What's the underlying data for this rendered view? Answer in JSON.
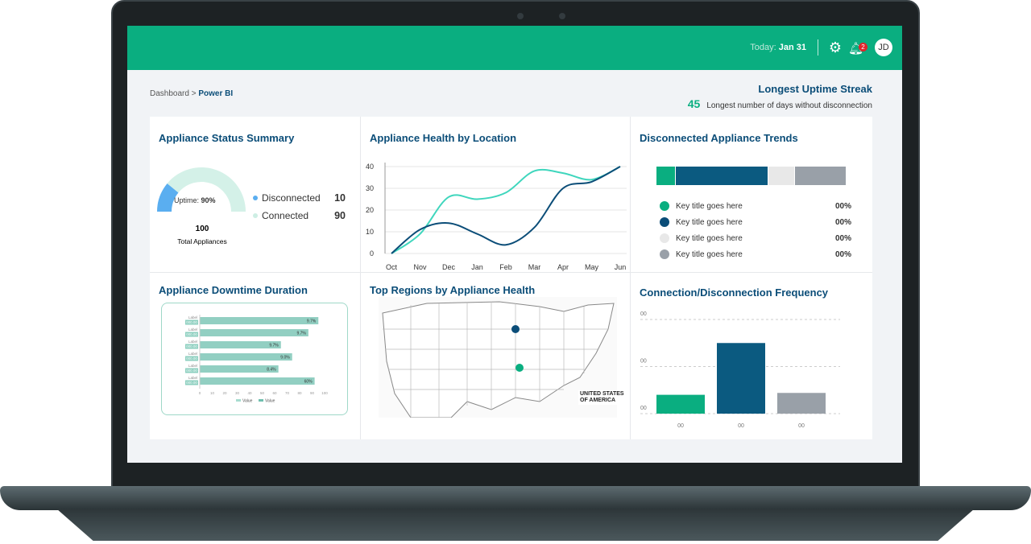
{
  "header": {
    "today_label": "Today:",
    "today_value": "Jan 31",
    "notifications": "2",
    "avatar": "JD"
  },
  "breadcrumb": {
    "root": "Dashboard",
    "sep": ">",
    "current": "Power BI"
  },
  "streak": {
    "title": "Longest Uptime Streak",
    "value": "45",
    "desc": "Longest number of days without disconnection"
  },
  "status": {
    "title": "Appliance Status Summary",
    "uptime_label": "Uptime:",
    "uptime_value": "90%",
    "uptime_fraction": 0.9,
    "items": [
      {
        "label": "Disconnected",
        "value": "10",
        "color": "#5aaef0"
      },
      {
        "label": "Connected",
        "value": "90",
        "color": "#cdeee4"
      }
    ],
    "total": "100",
    "total_label": "Total Appliances"
  },
  "health": {
    "title": "Appliance Health by Location",
    "chart_data": {
      "type": "line",
      "x": [
        "Oct",
        "Nov",
        "Dec",
        "Jan",
        "Feb",
        "Mar",
        "Apr",
        "May",
        "Jun"
      ],
      "yticks": [
        "0",
        "10",
        "20",
        "30",
        "40"
      ],
      "ylim": [
        0,
        40
      ],
      "series": [
        {
          "name": "teal",
          "color": "#3fd6bd",
          "values": [
            0,
            9,
            26,
            25,
            28,
            38,
            37,
            34,
            40
          ]
        },
        {
          "name": "navy",
          "color": "#0b4d78",
          "values": [
            0,
            11,
            14,
            9,
            4,
            12,
            30,
            33,
            40
          ]
        }
      ]
    }
  },
  "trends": {
    "title": "Disconnected Appliance Trends",
    "segments": [
      {
        "value": 10,
        "color": "#0aae80"
      },
      {
        "value": 49,
        "color": "#0b5a80"
      },
      {
        "value": 14,
        "color": "#e8e8e8"
      },
      {
        "value": 27,
        "color": "#99a0a8"
      }
    ],
    "items": [
      {
        "label": "Key title goes here",
        "value": "00%",
        "color": "#0aae80"
      },
      {
        "label": "Key title goes here",
        "value": "00%",
        "color": "#0b4d78"
      },
      {
        "label": "Key title goes here",
        "value": "00%",
        "color": "#e8e8e8"
      },
      {
        "label": "Key title goes here",
        "value": "00%",
        "color": "#99a0a8"
      }
    ]
  },
  "downtime": {
    "title": "Appliance Downtime Duration",
    "chart_data": {
      "type": "bar",
      "categories": [
        "Label",
        "Label",
        "Label",
        "Label",
        "Label",
        "Label"
      ],
      "codes": [
        "000.00",
        "000.00",
        "000.00",
        "000.00",
        "000.00",
        "000.00"
      ],
      "values": [
        95,
        87,
        65,
        74,
        63,
        92
      ],
      "labels": [
        "9.7%",
        "9.7%",
        "9.7%",
        "9.0%",
        "8.4%",
        "60%"
      ],
      "xticks": [
        "0",
        "10",
        "20",
        "30",
        "40",
        "50",
        "60",
        "70",
        "80",
        "90",
        "100"
      ],
      "legend": [
        "Value",
        "Value"
      ]
    }
  },
  "regions": {
    "title": "Top Regions by Appliance Health",
    "map_label": "UNITED STATES OF AMERICA"
  },
  "frequency": {
    "title": "Connection/Disconnection Frequency",
    "chart_data": {
      "type": "bar",
      "categories": [
        "00",
        "00",
        "00"
      ],
      "yticks": [
        "00",
        "00",
        "00"
      ],
      "values": [
        20,
        75,
        22
      ],
      "colors": [
        "#0aae80",
        "#0b5a80",
        "#99a0a8"
      ],
      "ylim": [
        0,
        100
      ]
    }
  }
}
